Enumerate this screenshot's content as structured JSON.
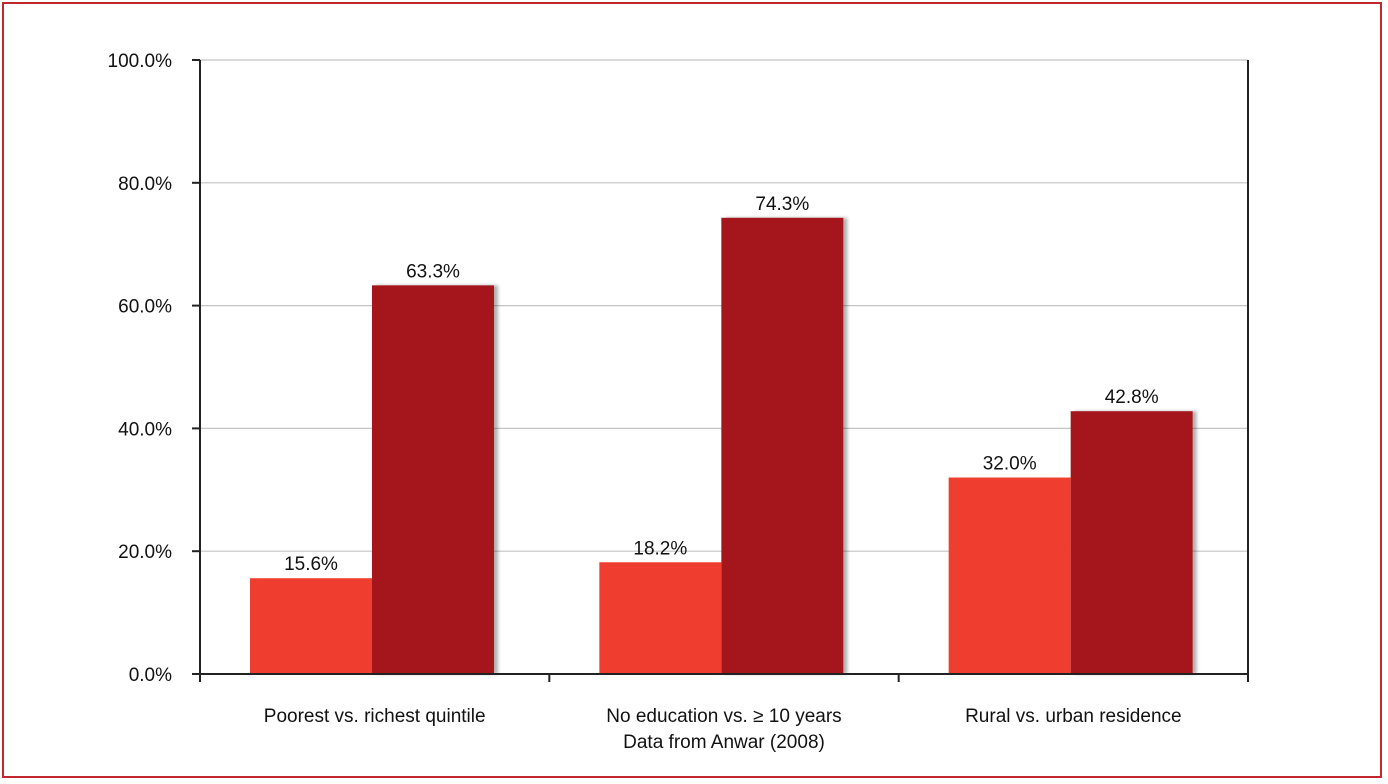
{
  "chart_data": {
    "type": "bar",
    "title": "",
    "xlabel": "",
    "ylabel": "",
    "ylim": [
      0,
      100
    ],
    "yticks": [
      "0.0%",
      "20.0%",
      "40.0%",
      "60.0%",
      "80.0%",
      "100.0%"
    ],
    "ytick_values": [
      0,
      20,
      40,
      60,
      80,
      100
    ],
    "categories": [
      [
        "Poorest vs. richest quintile"
      ],
      [
        "No education vs. ≥ 10 years",
        "Data from Anwar (2008)"
      ],
      [
        "Rural vs. urban residence"
      ]
    ],
    "series": [
      {
        "values": [
          15.6,
          18.2,
          32.0
        ],
        "labels": [
          "15.6%",
          "18.2%",
          "32.0%"
        ],
        "color": "#ef3e2f"
      },
      {
        "values": [
          63.3,
          74.3,
          42.8
        ],
        "labels": [
          "63.3%",
          "74.3%",
          "42.8%"
        ],
        "color": "#a4181c"
      }
    ],
    "grid": true,
    "legend": "none"
  },
  "frame_color": "#c0282d"
}
